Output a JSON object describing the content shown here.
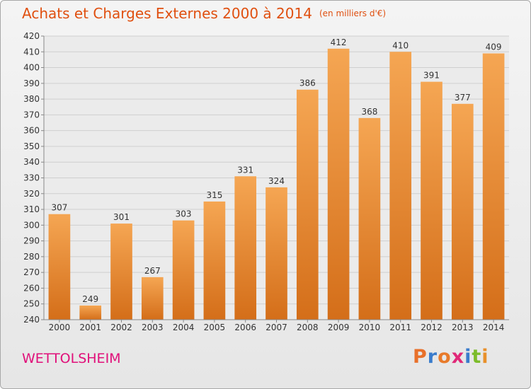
{
  "title": "Achats et Charges Externes 2000 à 2014",
  "subtitle": "(en milliers d'€)",
  "commune": "WETTOLSHEIM",
  "logo": {
    "text": "Proxiti",
    "letter_colors": [
      "#e8702a",
      "#3a7ccc",
      "#e87a2a",
      "#e02878",
      "#3a7ccc",
      "#7cbc2a",
      "#e8902a"
    ]
  },
  "colors": {
    "bar_top": "#f5a653",
    "bar_bottom": "#d46e19",
    "title": "#e05010",
    "commune": "#e0107a",
    "grid": "#cfcfcf",
    "axis": "#888888"
  },
  "chart_data": {
    "type": "bar",
    "categories": [
      "2000",
      "2001",
      "2002",
      "2003",
      "2004",
      "2005",
      "2006",
      "2007",
      "2008",
      "2009",
      "2010",
      "2011",
      "2012",
      "2013",
      "2014"
    ],
    "values": [
      307,
      249,
      301,
      267,
      303,
      315,
      331,
      324,
      386,
      412,
      368,
      410,
      391,
      377,
      409
    ],
    "ylim": [
      240,
      420
    ],
    "yticks": [
      240,
      250,
      260,
      270,
      280,
      290,
      300,
      310,
      320,
      330,
      340,
      350,
      360,
      370,
      380,
      390,
      400,
      410,
      420
    ],
    "grid": true,
    "xlabel": "",
    "ylabel": ""
  }
}
